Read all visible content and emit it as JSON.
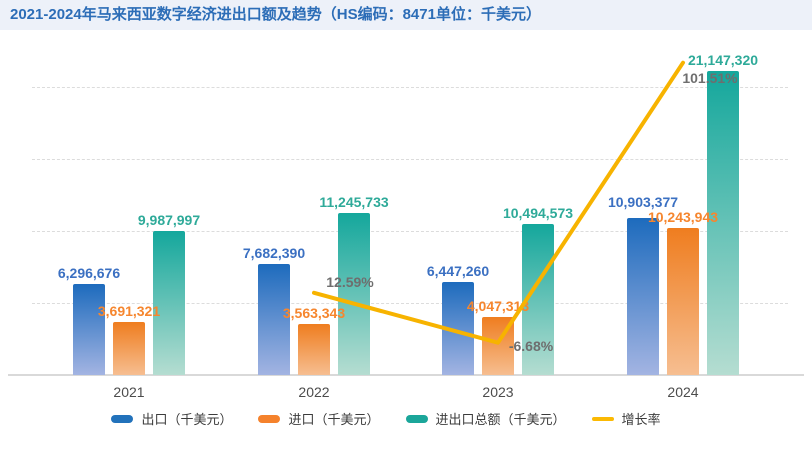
{
  "header": {
    "title": "2021-2024年马来西亚数字经济进出口额及趋势（HS编码：8471单位：千美元）"
  },
  "chart_data": {
    "type": "bar",
    "title": "2021-2024年马来西亚数字经济进出口额及趋势（HS编码：8471单位：千美元）",
    "categories": [
      "2021",
      "2022",
      "2023",
      "2024"
    ],
    "unit": "千美元",
    "ylim": [
      0,
      22000000
    ],
    "gridlines": "horizontal-dashed, every 5,000,000, no tick labels",
    "legend_position": "bottom",
    "series": [
      {
        "key": "export",
        "name": "出口（千美元）",
        "kind": "bar",
        "values": [
          6296676,
          7682390,
          6447260,
          10903377
        ],
        "labels": [
          "6,296,676",
          "7,682,390",
          "6,447,260",
          "10,903,377"
        ],
        "color_top": "#1d6bbd",
        "color_bottom": "#a3b4e2",
        "label_color": "#3b70c2",
        "legend_color": "#2272bb"
      },
      {
        "key": "import",
        "name": "进口（千美元）",
        "kind": "bar",
        "values": [
          3691321,
          3563343,
          4047313,
          10243943
        ],
        "labels": [
          "3,691,321",
          "3,563,343",
          "4,047,313",
          "10,243,943"
        ],
        "color_top": "#ef7d1f",
        "color_bottom": "#f6be91",
        "label_color": "#f6862e",
        "legend_color": "#f5822c"
      },
      {
        "key": "total",
        "name": "进出口总额（千美元）",
        "kind": "bar",
        "values": [
          9987997,
          11245733,
          10494573,
          21147320
        ],
        "labels": [
          "9,987,997",
          "11,245,733",
          "10,494,573",
          "21,147,320"
        ],
        "color_top": "#14a79c",
        "color_bottom": "#b5ddd1",
        "label_color": "#2eaa99",
        "legend_color": "#1ba69a"
      },
      {
        "key": "growth",
        "name": "增长率",
        "kind": "line",
        "values": [
          null,
          12.59,
          -6.68,
          101.51
        ],
        "labels": [
          null,
          "12.59%",
          "-6.68%",
          "101.51%"
        ],
        "color": "#f7b300",
        "label_color": "#6e6e6e",
        "legend_color": "#fbb903"
      }
    ]
  }
}
